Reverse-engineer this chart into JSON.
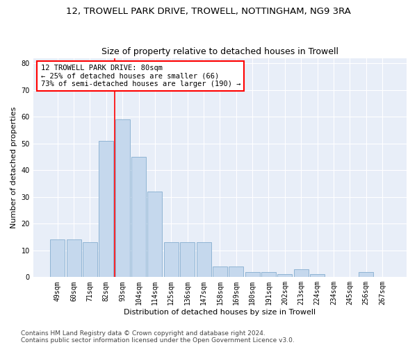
{
  "title": "12, TROWELL PARK DRIVE, TROWELL, NOTTINGHAM, NG9 3RA",
  "subtitle": "Size of property relative to detached houses in Trowell",
  "xlabel": "Distribution of detached houses by size in Trowell",
  "ylabel": "Number of detached properties",
  "categories": [
    "49sqm",
    "60sqm",
    "71sqm",
    "82sqm",
    "93sqm",
    "104sqm",
    "114sqm",
    "125sqm",
    "136sqm",
    "147sqm",
    "158sqm",
    "169sqm",
    "180sqm",
    "191sqm",
    "202sqm",
    "213sqm",
    "224sqm",
    "234sqm",
    "245sqm",
    "256sqm",
    "267sqm"
  ],
  "values": [
    14,
    14,
    13,
    51,
    59,
    45,
    32,
    13,
    13,
    13,
    4,
    4,
    2,
    2,
    1,
    3,
    1,
    0,
    0,
    2,
    0
  ],
  "bar_color": "#c5d8ed",
  "bar_edge_color": "#8fb4d4",
  "bg_color": "#e8eef8",
  "grid_color": "#ffffff",
  "vline_color": "red",
  "vline_x": 3.5,
  "annotation_text": "12 TROWELL PARK DRIVE: 80sqm\n← 25% of detached houses are smaller (66)\n73% of semi-detached houses are larger (190) →",
  "annotation_box_color": "red",
  "ylim": [
    0,
    82
  ],
  "yticks": [
    0,
    10,
    20,
    30,
    40,
    50,
    60,
    70,
    80
  ],
  "footer1": "Contains HM Land Registry data © Crown copyright and database right 2024.",
  "footer2": "Contains public sector information licensed under the Open Government Licence v3.0.",
  "title_fontsize": 9.5,
  "subtitle_fontsize": 9,
  "axis_label_fontsize": 8,
  "tick_fontsize": 7,
  "annotation_fontsize": 7.5,
  "footer_fontsize": 6.5
}
